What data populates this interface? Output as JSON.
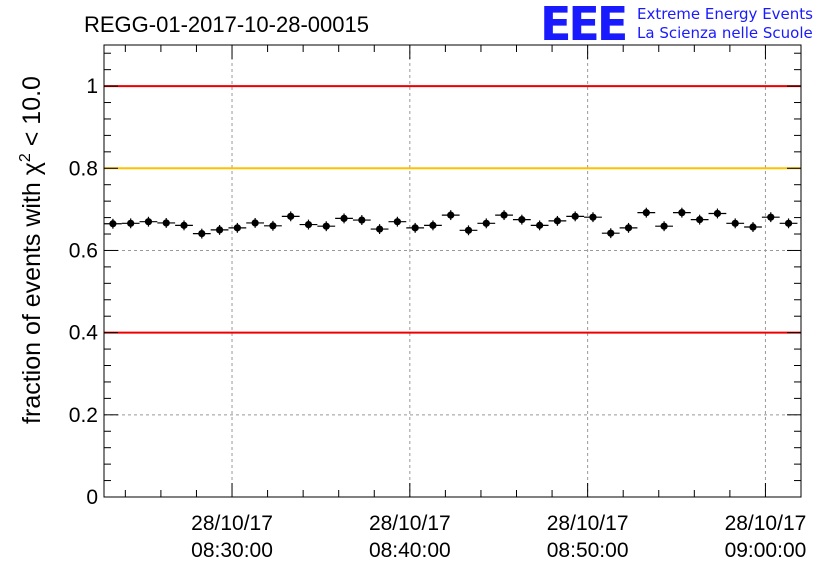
{
  "header": {
    "title": "REGG-01-2017-10-28-00015",
    "logo_letters": "EEE",
    "logo_line1": "Extreme Energy Events",
    "logo_line2": "La Scienza nelle Scuole"
  },
  "colors": {
    "points": "#000000",
    "red_lines": "#ee0000",
    "yellow_line": "#ffc000",
    "grid": "#999999",
    "logo": "#1a1aff"
  },
  "chart_data": {
    "type": "scatter",
    "title": "REGG-01-2017-10-28-00015",
    "xlabel": "",
    "ylabel_prefix": "fraction of events with χ",
    "ylabel_superscript": "2",
    "ylabel_suffix": " < 10.0",
    "xlim_minutes": [
      2.8,
      42.0
    ],
    "ylim": [
      0,
      1.1
    ],
    "yticks": [
      0,
      0.2,
      0.4,
      0.6,
      0.8,
      1
    ],
    "ytick_labels": [
      "0",
      "0.2",
      "0.4",
      "0.6",
      "0.8",
      "1"
    ],
    "xticks": [
      {
        "minute": 10,
        "date": "28/10/17",
        "time": "08:30:00"
      },
      {
        "minute": 20,
        "date": "28/10/17",
        "time": "08:40:00"
      },
      {
        "minute": 30,
        "date": "28/10/17",
        "time": "08:50:00"
      },
      {
        "minute": 40,
        "date": "28/10/17",
        "time": "09:00:00"
      }
    ],
    "x_axis_origin": "08:20:00 (minute 0)",
    "grid": true,
    "reference_lines": [
      {
        "y": 1.0,
        "color": "red"
      },
      {
        "y": 0.8,
        "color": "yellow"
      },
      {
        "y": 0.4,
        "color": "red"
      }
    ],
    "bin_width_minutes": 1.0,
    "y_error": 0.012,
    "series": [
      {
        "name": "fraction chi2 < 10.0",
        "x": [
          3.3,
          4.3,
          5.3,
          6.3,
          7.3,
          8.3,
          9.3,
          10.3,
          11.3,
          12.3,
          13.3,
          14.3,
          15.3,
          16.3,
          17.3,
          18.3,
          19.3,
          20.3,
          21.3,
          22.3,
          23.3,
          24.3,
          25.3,
          26.3,
          27.3,
          28.3,
          29.3,
          30.3,
          31.3,
          32.3,
          33.3,
          34.3,
          35.3,
          36.3,
          37.3,
          38.3,
          39.3,
          40.3,
          41.3
        ],
        "values": [
          0.665,
          0.666,
          0.67,
          0.667,
          0.661,
          0.641,
          0.65,
          0.655,
          0.667,
          0.66,
          0.683,
          0.663,
          0.659,
          0.678,
          0.674,
          0.652,
          0.67,
          0.655,
          0.661,
          0.686,
          0.649,
          0.666,
          0.686,
          0.675,
          0.661,
          0.672,
          0.683,
          0.681,
          0.642,
          0.655,
          0.692,
          0.659,
          0.692,
          0.675,
          0.69,
          0.666,
          0.657,
          0.681,
          0.666
        ]
      }
    ]
  }
}
